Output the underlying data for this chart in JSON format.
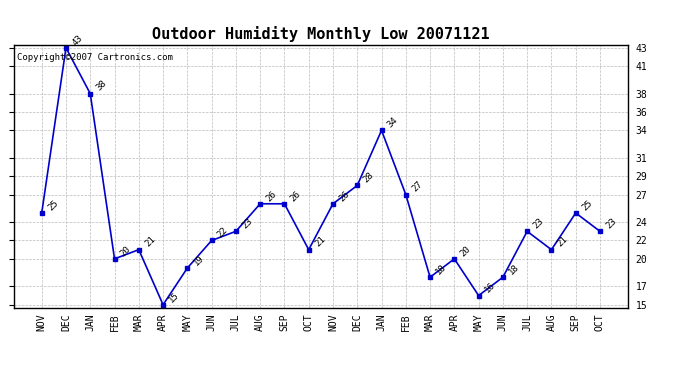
{
  "title": "Outdoor Humidity Monthly Low 20071121",
  "copyright": "Copyright©2007 Cartronics.com",
  "months": [
    "NOV",
    "DEC",
    "JAN",
    "FEB",
    "MAR",
    "APR",
    "MAY",
    "JUN",
    "JUL",
    "AUG",
    "SEP",
    "OCT",
    "NOV",
    "DEC",
    "JAN",
    "FEB",
    "MAR",
    "APR",
    "MAY",
    "JUN",
    "JUL",
    "AUG",
    "SEP",
    "OCT"
  ],
  "values": [
    25,
    43,
    38,
    20,
    21,
    15,
    19,
    22,
    23,
    26,
    26,
    21,
    26,
    28,
    34,
    27,
    18,
    20,
    16,
    18,
    23,
    21,
    25,
    23
  ],
  "line_color": "#0000cc",
  "marker": "s",
  "marker_size": 3,
  "ylim_min": 15,
  "ylim_max": 43,
  "yticks": [
    15,
    17,
    20,
    22,
    24,
    27,
    29,
    31,
    34,
    36,
    38,
    41,
    43
  ],
  "bg_color": "#ffffff",
  "grid_color": "#bbbbbb",
  "title_fontsize": 11,
  "label_fontsize": 7,
  "annotation_fontsize": 6.5,
  "copyright_fontsize": 6.5
}
